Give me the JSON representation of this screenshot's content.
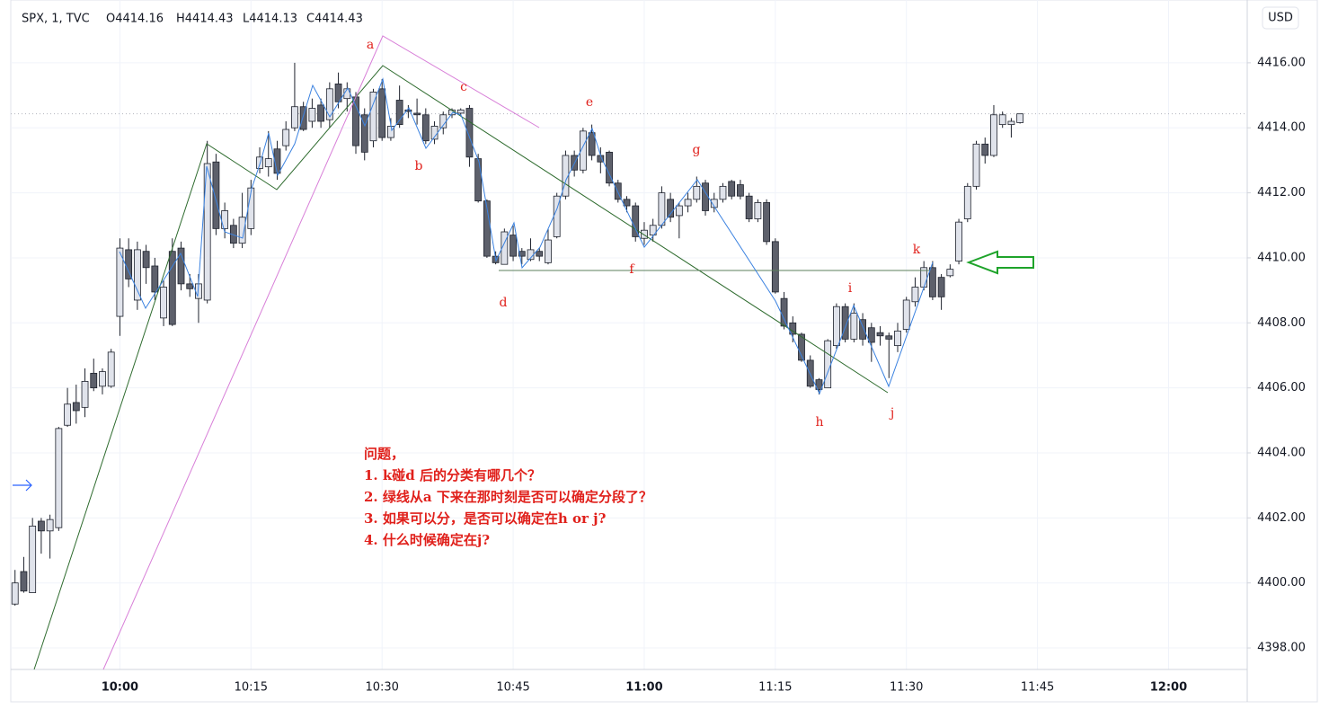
{
  "header": {
    "symbol": "SPX, 1, TVC",
    "ohlc": [
      "O4414.16",
      "H4414.43",
      "L4414.13",
      "C4414.43"
    ],
    "currency": "USD"
  },
  "chart_data": {
    "type": "candlestick",
    "x": [
      "09:48",
      "09:49",
      "09:50",
      "09:51",
      "09:52",
      "09:53",
      "09:54",
      "09:55",
      "09:56",
      "09:57",
      "09:58",
      "09:59",
      "10:00",
      "10:01",
      "10:02",
      "10:03",
      "10:04",
      "10:05",
      "10:06",
      "10:07",
      "10:08",
      "10:09",
      "10:10",
      "10:11",
      "10:12",
      "10:13",
      "10:14",
      "10:15",
      "10:16",
      "10:17",
      "10:18",
      "10:19",
      "10:20",
      "10:21",
      "10:22",
      "10:23",
      "10:24",
      "10:25",
      "10:26",
      "10:27",
      "10:28",
      "10:29",
      "10:30",
      "10:31",
      "10:32",
      "10:33",
      "10:34",
      "10:35",
      "10:36",
      "10:37",
      "10:38",
      "10:39",
      "10:40",
      "10:41",
      "10:42",
      "10:43",
      "10:44",
      "10:45",
      "10:46",
      "10:47",
      "10:48",
      "10:49",
      "10:50",
      "10:51",
      "10:52",
      "10:53",
      "10:54",
      "10:55",
      "10:56",
      "10:57",
      "10:58",
      "10:59",
      "11:00",
      "11:01",
      "11:02",
      "11:03",
      "11:04",
      "11:05",
      "11:06",
      "11:07",
      "11:08",
      "11:09",
      "11:10",
      "11:11",
      "11:12",
      "11:13",
      "11:14",
      "11:15",
      "11:16",
      "11:17",
      "11:18",
      "11:19",
      "11:20",
      "11:21",
      "11:22",
      "11:23",
      "11:24",
      "11:25",
      "11:26",
      "11:27",
      "11:28",
      "11:29",
      "11:30",
      "11:31",
      "11:32",
      "11:33",
      "11:34",
      "11:35",
      "11:36",
      "11:37",
      "11:38",
      "11:39",
      "11:40",
      "11:41",
      "11:42",
      "11:43"
    ],
    "open": [
      4399.35,
      4400.35,
      4399.7,
      4401.9,
      4401.6,
      4401.7,
      4404.85,
      4405.55,
      4405.4,
      4406.45,
      4406.05,
      4406.05,
      4408.2,
      4410.25,
      4408.7,
      4410.2,
      4409.75,
      4408.15,
      4410.2,
      4410.3,
      4409.2,
      4408.75,
      4408.7,
      4412.95,
      4410.9,
      4411.0,
      4410.45,
      4410.9,
      4412.75,
      4412.8,
      4413.35,
      4413.45,
      4414.0,
      4414.65,
      4414.2,
      4414.7,
      4414.25,
      4415.35,
      4414.9,
      4414.95,
      4414.4,
      4413.6,
      4415.2,
      4413.7,
      4414.85,
      4414.55,
      4414.45,
      4414.4,
      4413.65,
      4414.0,
      4414.4,
      4414.45,
      4414.6,
      4413.05,
      4411.75,
      4410.05,
      4409.8,
      4410.7,
      4410.2,
      4409.95,
      4410.2,
      4409.85,
      4410.65,
      4411.9,
      4413.15,
      4412.7,
      4413.85,
      4413.15,
      4413.25,
      4412.3,
      4411.8,
      4411.6,
      4410.6,
      4410.7,
      4411.0,
      4411.8,
      4411.3,
      4411.6,
      4411.8,
      4412.3,
      4411.55,
      4411.8,
      4412.35,
      4412.25,
      4411.9,
      4411.2,
      4411.7,
      4410.5,
      4408.75,
      4408.0,
      4407.65,
      4406.85,
      4406.25,
      4406.0,
      4407.3,
      4408.5,
      4407.5,
      4408.1,
      4407.85,
      4407.7,
      4407.6,
      4407.3,
      4407.8,
      4408.65,
      4409.1,
      4409.7,
      4409.4,
      4409.45,
      4409.9,
      4411.2,
      4412.2,
      4413.5,
      4413.15,
      4414.1,
      4414.1,
      4414.16
    ],
    "high": [
      4400.4,
      4400.8,
      4402.0,
      4402.0,
      4402.1,
      4404.8,
      4406.0,
      4406.1,
      4406.6,
      4406.9,
      4406.6,
      4407.2,
      4410.6,
      4410.6,
      4410.5,
      4410.4,
      4410.0,
      4409.3,
      4410.6,
      4410.5,
      4409.5,
      4409.5,
      4413.6,
      4413.2,
      4411.7,
      4411.2,
      4412.0,
      4412.4,
      4413.4,
      4413.9,
      4413.6,
      4414.2,
      4416.0,
      4414.8,
      4414.9,
      4414.9,
      4415.4,
      4415.7,
      4415.4,
      4415.1,
      4414.6,
      4415.2,
      4415.5,
      4414.3,
      4415.3,
      4414.7,
      4414.9,
      4414.6,
      4414.2,
      4414.5,
      4414.6,
      4414.6,
      4414.7,
      4413.2,
      4411.8,
      4410.2,
      4410.9,
      4411.0,
      4410.3,
      4410.6,
      4410.3,
      4410.9,
      4412.0,
      4413.3,
      4413.3,
      4414.0,
      4414.1,
      4413.4,
      4413.3,
      4412.4,
      4411.9,
      4411.7,
      4411.1,
      4411.2,
      4412.2,
      4412.0,
      4411.7,
      4412.0,
      4412.5,
      4412.4,
      4412.0,
      4412.3,
      4412.4,
      4412.4,
      4412.0,
      4411.8,
      4411.8,
      4410.6,
      4408.95,
      4408.2,
      4407.7,
      4407.0,
      4406.3,
      4407.5,
      4408.6,
      4408.6,
      4408.6,
      4408.3,
      4408.0,
      4407.9,
      4407.7,
      4408.0,
      4408.8,
      4409.4,
      4409.9,
      4409.9,
      4409.5,
      4409.8,
      4411.2,
      4412.3,
      4413.6,
      4413.7,
      4414.7,
      4414.5,
      4414.3,
      4414.43
    ],
    "low": [
      4399.3,
      4399.7,
      4399.7,
      4400.9,
      4400.75,
      4401.6,
      4404.8,
      4404.9,
      4405.1,
      4405.9,
      4405.8,
      4406.0,
      4407.6,
      4409.1,
      4408.4,
      4409.2,
      4408.7,
      4407.9,
      4407.9,
      4409.0,
      4408.8,
      4408.0,
      4408.6,
      4410.7,
      4410.6,
      4410.3,
      4410.3,
      4410.7,
      4412.6,
      4412.5,
      4412.4,
      4413.3,
      4413.9,
      4413.9,
      4414.0,
      4414.0,
      4414.0,
      4414.6,
      4414.5,
      4413.2,
      4413.0,
      4413.4,
      4413.6,
      4413.6,
      4414.0,
      4414.3,
      4414.1,
      4413.5,
      4413.5,
      4413.8,
      4414.3,
      4414.4,
      4412.8,
      4411.7,
      4410.0,
      4409.8,
      4409.8,
      4409.9,
      4409.8,
      4409.9,
      4409.9,
      4409.8,
      4410.6,
      4411.8,
      4412.5,
      4412.6,
      4413.0,
      4412.6,
      4412.2,
      4411.7,
      4411.4,
      4410.5,
      4410.4,
      4410.5,
      4410.9,
      4411.1,
      4410.6,
      4411.4,
      4411.7,
      4411.3,
      4411.4,
      4411.7,
      4411.8,
      4411.8,
      4411.1,
      4411.1,
      4410.4,
      4408.9,
      4407.8,
      4407.4,
      4406.8,
      4406.0,
      4405.8,
      4406.0,
      4407.2,
      4407.4,
      4407.4,
      4407.3,
      4406.8,
      4407.3,
      4406.3,
      4407.1,
      4407.7,
      4408.5,
      4409.0,
      4408.7,
      4408.4,
      4409.4,
      4409.8,
      4411.1,
      4412.1,
      4412.9,
      4413.1,
      4414.0,
      4413.7,
      4414.13
    ],
    "close": [
      4400.0,
      4399.75,
      4401.75,
      4401.6,
      4401.95,
      4404.75,
      4405.5,
      4405.3,
      4406.2,
      4406.0,
      4406.5,
      4407.1,
      4410.3,
      4409.35,
      4410.25,
      4409.7,
      4408.95,
      4409.1,
      4407.95,
      4409.2,
      4409.05,
      4409.2,
      4412.9,
      4410.9,
      4411.45,
      4410.45,
      4411.25,
      4412.15,
      4413.1,
      4413.05,
      4412.6,
      4413.95,
      4414.65,
      4413.95,
      4414.6,
      4414.2,
      4415.2,
      4414.8,
      4415.2,
      4413.45,
      4413.25,
      4415.1,
      4413.7,
      4414.05,
      4414.1,
      4414.5,
      4414.4,
      4413.6,
      4414.05,
      4414.4,
      4414.55,
      4414.55,
      4413.1,
      4411.75,
      4410.05,
      4409.85,
      4410.8,
      4410.05,
      4410.05,
      4410.25,
      4410.05,
      4410.55,
      4411.9,
      4413.15,
      4412.7,
      4413.9,
      4413.15,
      4412.95,
      4412.3,
      4411.8,
      4411.6,
      4410.65,
      4410.85,
      4411.0,
      4412.0,
      4411.25,
      4411.6,
      4411.8,
      4412.2,
      4411.45,
      4411.8,
      4412.2,
      4411.9,
      4411.9,
      4411.2,
      4411.7,
      4410.5,
      4408.95,
      4407.9,
      4407.65,
      4406.85,
      4406.05,
      4405.95,
      4407.45,
      4408.5,
      4407.5,
      4408.3,
      4407.5,
      4407.4,
      4407.6,
      4407.5,
      4407.75,
      4408.7,
      4409.1,
      4409.7,
      4408.8,
      4408.8,
      4409.65,
      4411.1,
      4412.2,
      4413.5,
      4413.15,
      4414.4,
      4414.4,
      4414.2,
      4414.43
    ],
    "up_color": "#e0e3eb",
    "down_color": "#5d606b",
    "border_color": "#1e222d",
    "xlim": [
      "09:47",
      "12:09"
    ],
    "xticks": [
      "10:00",
      "10:15",
      "10:30",
      "10:45",
      "11:00",
      "11:15",
      "11:30",
      "11:45",
      "12:00"
    ],
    "ylim": [
      4397.67,
      4417.6
    ],
    "yticks": [
      {
        "value": 4398,
        "label": "4398.00"
      },
      {
        "value": 4400,
        "label": "4400.00"
      },
      {
        "value": 4402,
        "label": "4402.00"
      },
      {
        "value": 4404,
        "label": "4404.00"
      },
      {
        "value": 4406,
        "label": "4406.00"
      },
      {
        "value": 4408,
        "label": "4408.00"
      },
      {
        "value": 4410,
        "label": "4410.00"
      },
      {
        "value": 4412,
        "label": "4412.00"
      },
      {
        "value": 4414,
        "label": "4414.00"
      },
      {
        "value": 4416,
        "label": "4416.00"
      }
    ],
    "grid": true,
    "annotations": [
      "a",
      "b",
      "c",
      "d",
      "e",
      "f",
      "g",
      "h",
      "i",
      "j",
      "k"
    ],
    "question": [
      "问题，",
      "1. k碰d 后的分类有哪几个？",
      "2. 绿线从a 下来在那时刻是否可以确定分段了？",
      "3. 如果可以分，是否可以确定在h or j?",
      "4. 什么时候确定在j?"
    ]
  }
}
